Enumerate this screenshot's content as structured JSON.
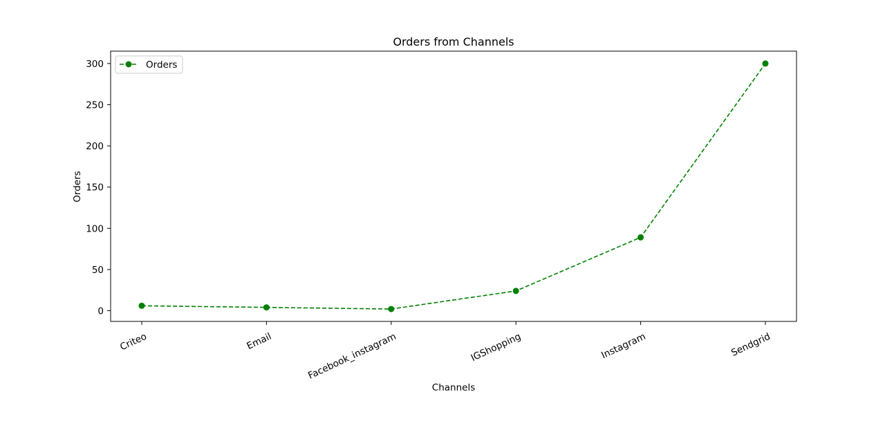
{
  "chart_data": {
    "type": "line",
    "title": "Orders from Channels",
    "xlabel": "Channels",
    "ylabel": "Orders",
    "categories": [
      "Criteo",
      "Email",
      "Facebook_instagram",
      "IGShopping",
      "Instagram",
      "Sendgrid"
    ],
    "series": [
      {
        "name": "Orders",
        "values": [
          6,
          4,
          2,
          24,
          89,
          300
        ],
        "color": "#008000",
        "line_style": "dashed",
        "marker": "circle"
      }
    ],
    "ylim": [
      -13,
      315
    ],
    "yticks": [
      0,
      50,
      100,
      150,
      200,
      250,
      300
    ],
    "x_tick_rotation": 25,
    "grid": false,
    "legend_position": "top-left"
  }
}
